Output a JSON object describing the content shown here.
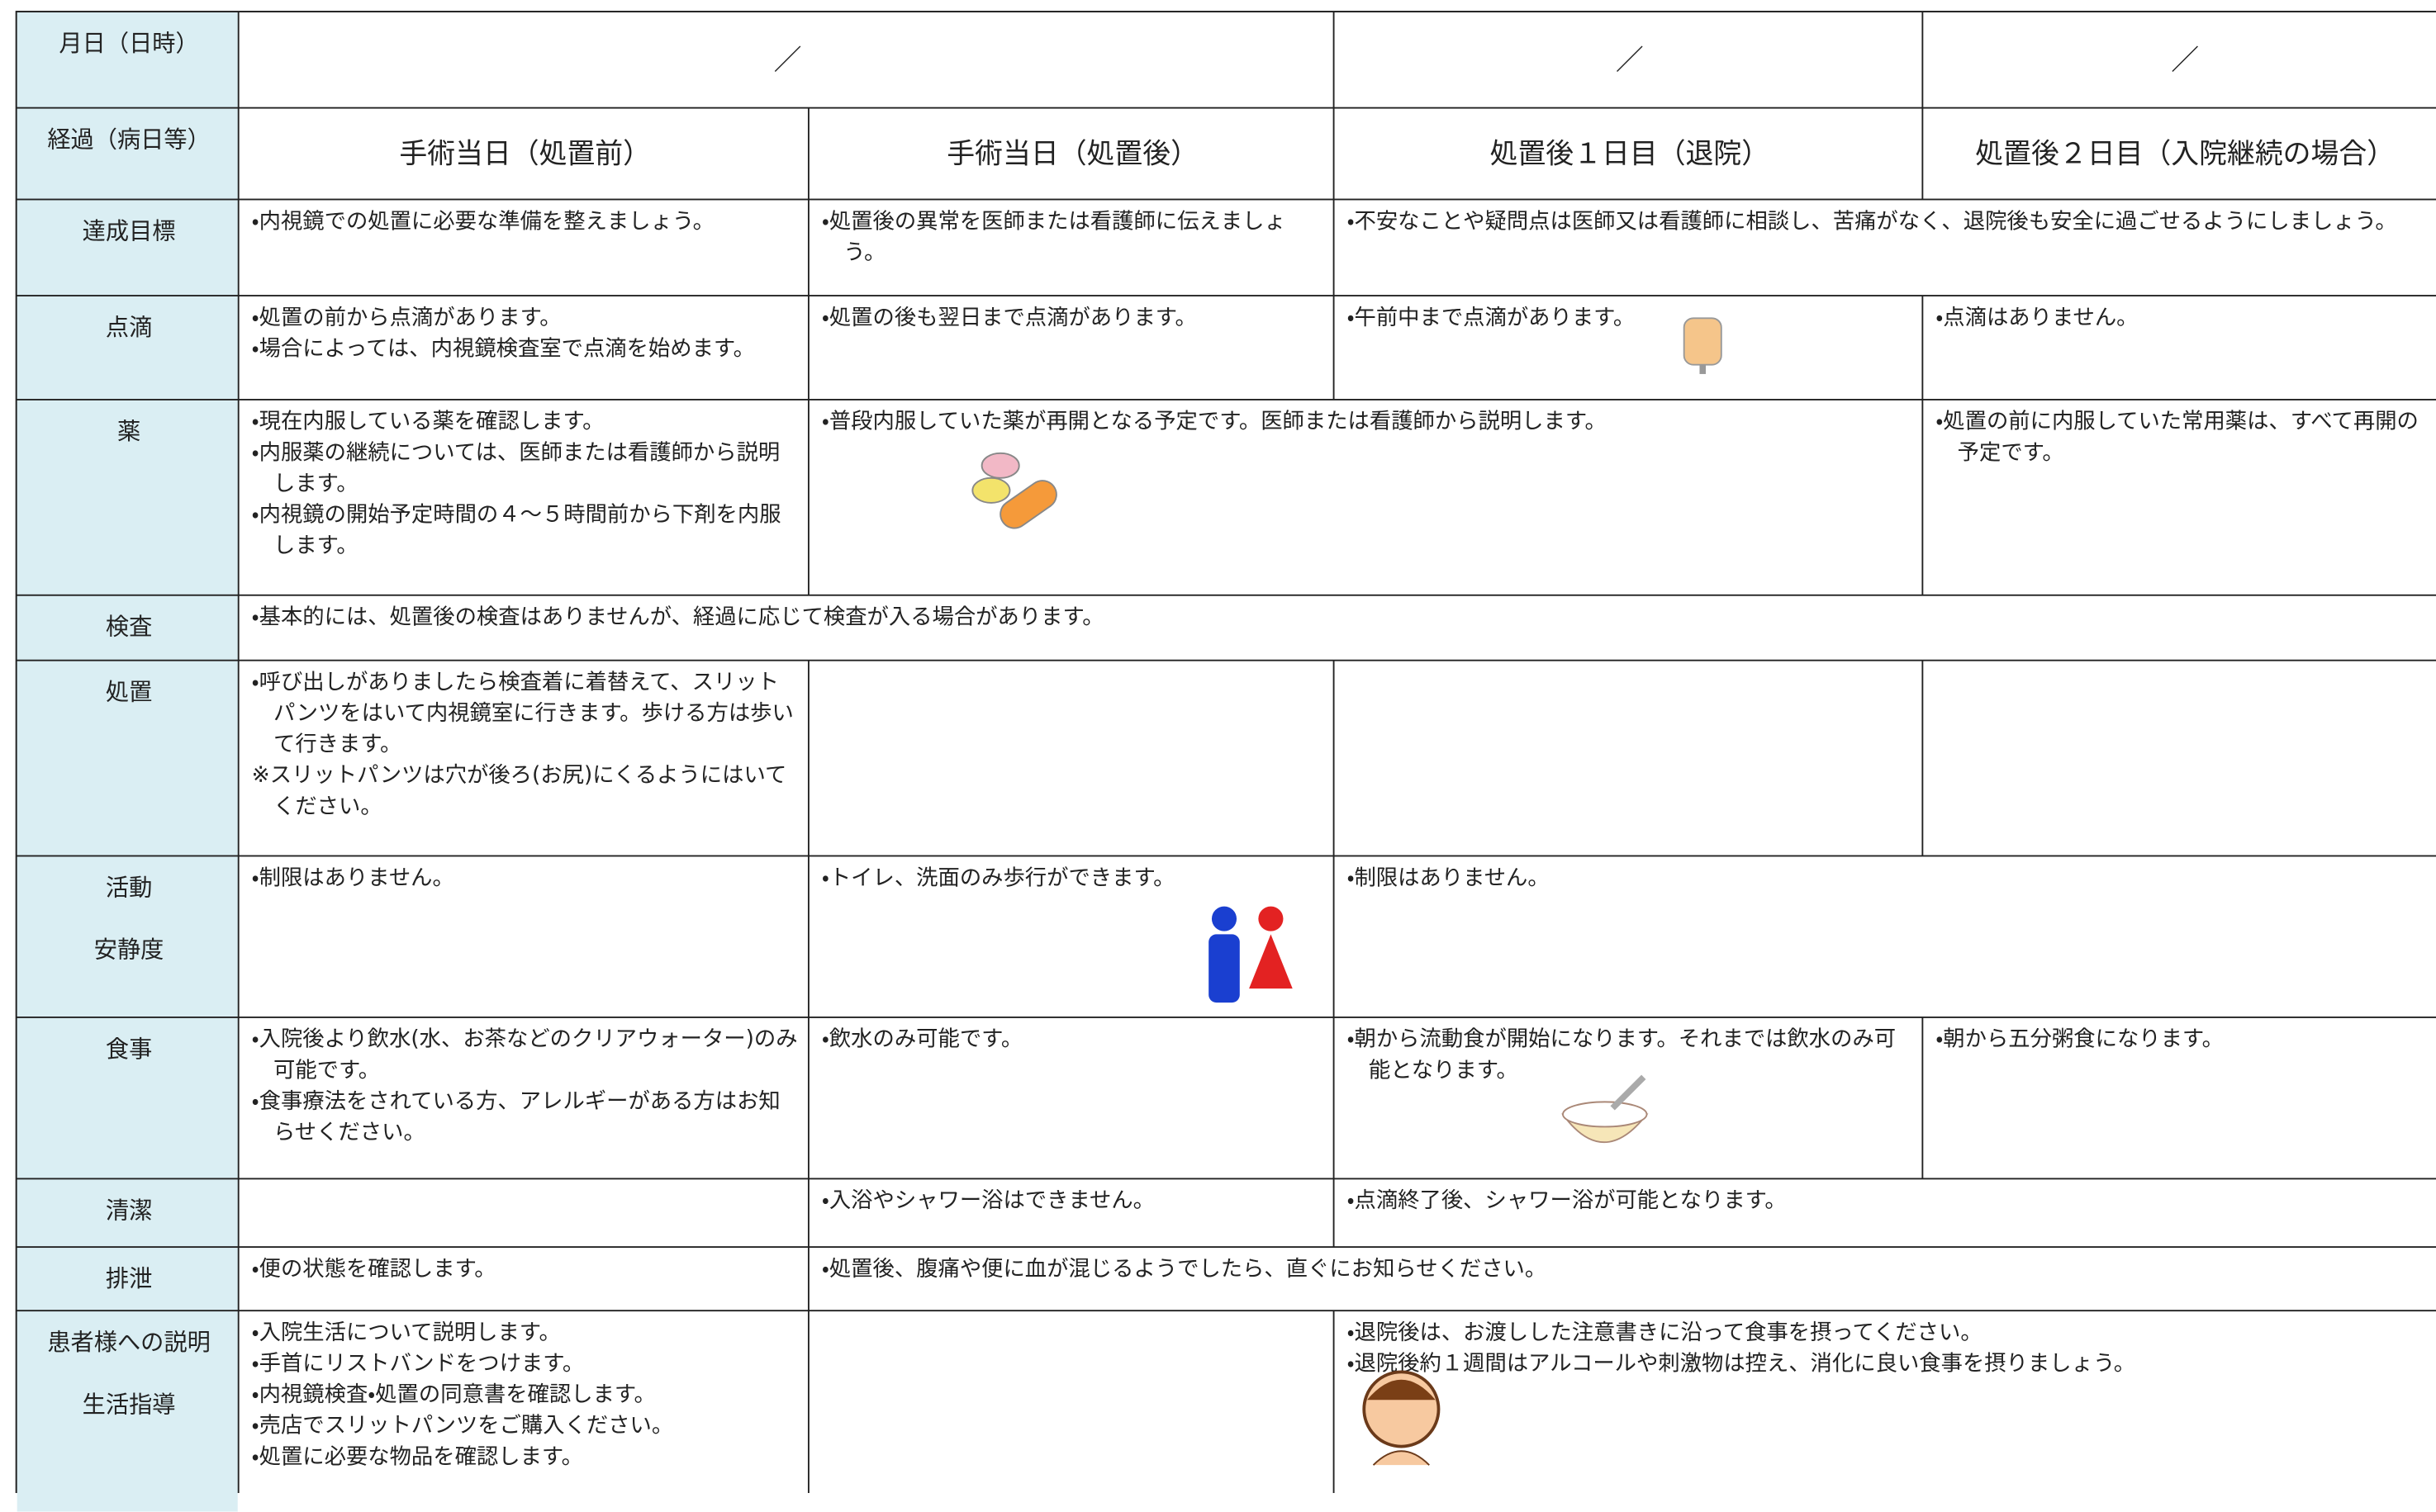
{
  "table": {
    "header": {
      "label": "月日（日時）",
      "dates": [
        "／",
        "／",
        "／"
      ]
    },
    "phases": {
      "label": "経過（病日等）",
      "columns": [
        "手術当日（処置前）",
        "手術当日（処置後）",
        "処置後１日目（退院）",
        "処置後２日目（入院継続の場合）"
      ]
    },
    "rows": [
      {
        "label": [
          "達成目標"
        ],
        "cells": [
          [
            "・内視鏡での処置に必要な準備を整えましょう。"
          ],
          [
            "・処置後の異常を医師または看護師に伝えましょう。"
          ],
          [
            "・不安なことや疑問点は医師又は看護師に相談し、苦痛がなく、退院後も安全に過ごせるようにしましょう。"
          ]
        ]
      },
      {
        "label": [
          "点滴"
        ],
        "cells": [
          [
            "・処置の前から点滴があります。",
            "・場合によっては、内視鏡検査室で点滴を始めます。"
          ],
          [
            "・処置の後も翌日まで点滴があります。"
          ],
          [
            "・午前中まで点滴があります。"
          ],
          [
            "・点滴はありません。"
          ]
        ]
      },
      {
        "label": [
          "薬"
        ],
        "cells": [
          [
            "・現在内服している薬を確認します。",
            "・内服薬の継続については、医師または看護師から説明します。",
            "・内視鏡の開始予定時間の４～５時間前から下剤を内服します。"
          ],
          [
            "・普段内服していた薬が再開となる予定です。医師または看護師から説明します。"
          ],
          [
            "・処置の前に内服していた常用薬は、すべて再開の予定です。"
          ]
        ]
      },
      {
        "label": [
          "検査"
        ],
        "cells": [
          [
            "・基本的には、処置後の検査はありませんが、経過に応じて検査が入る場合があります。"
          ]
        ]
      },
      {
        "label": [
          "処置"
        ],
        "cells": [
          [
            "・呼び出しがありましたら検査着に着替えて、スリットパンツをはいて内視鏡室に行きます。歩ける方は歩いて行きます。",
            "※スリットパンツは穴が後ろ(お尻)にくるようにはいてください。"
          ],
          [],
          [],
          []
        ]
      },
      {
        "label": [
          "活動",
          "安静度"
        ],
        "cells": [
          [
            "・制限はありません。"
          ],
          [
            "・トイレ、洗面のみ歩行ができます。"
          ],
          [
            "・制限はありません。"
          ]
        ]
      },
      {
        "label": [
          "食事"
        ],
        "cells": [
          [
            "・入院後より飲水(水、お茶などのクリアウォーター)のみ可能です。",
            "・食事療法をされている方、アレルギーがある方はお知らせください。"
          ],
          [
            "・飲水のみ可能です。"
          ],
          [
            "・朝から流動食が開始になります。それまでは飲水のみ可能となります。"
          ],
          [
            "・朝から五分粥食になります。"
          ]
        ]
      },
      {
        "label": [
          "清潔"
        ],
        "cells": [
          [],
          [
            "・入浴やシャワー浴はできません。"
          ],
          [
            "・点滴終了後、シャワー浴が可能となります。"
          ]
        ]
      },
      {
        "label": [
          "排泄"
        ],
        "cells": [
          [
            "・便の状態を確認します。"
          ],
          [
            "・処置後、腹痛や便に血が混じるようでしたら、直ぐにお知らせください。"
          ]
        ]
      },
      {
        "label": [
          "患者様への説明",
          "生活指導"
        ],
        "cells": [
          [
            "・入院生活について説明します。",
            "・手首にリストバンドをつけます。",
            "・内視鏡検査・処置の同意書を確認します。",
            "・売店でスリットパンツをご購入ください。",
            "・処置に必要な物品を確認します。"
          ],
          [],
          [
            "・退院後は、お渡しした注意書きに沿って食事を摂ってください。",
            "・退院後約１週間はアルコールや刺激物は控え、消化に良い食事を摂りましょう。"
          ]
        ]
      }
    ]
  }
}
